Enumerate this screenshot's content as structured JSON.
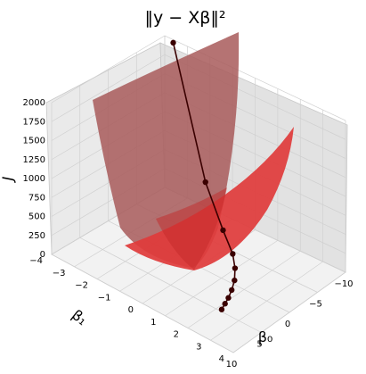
{
  "chart_data": {
    "type": "surface3d",
    "title": "‖y − Xβ‖²",
    "zlabel": "J",
    "xlabel": "β₀",
    "ylabel": "β₁",
    "x_ticks": [
      "−10",
      "−5",
      "0",
      "5",
      "10"
    ],
    "y_ticks": [
      "−4",
      "−3",
      "−2",
      "−1",
      "0",
      "1",
      "2",
      "3",
      "4"
    ],
    "z_ticks": [
      "0",
      "250",
      "500",
      "750",
      "1000",
      "1250",
      "1500",
      "1750",
      "2000"
    ],
    "xlim": [
      -10,
      10
    ],
    "ylim": [
      -4,
      4
    ],
    "zlim": [
      0,
      2000
    ],
    "grid": true,
    "surface_color": "#d62728",
    "path_color": "#3a0000",
    "descent_path": [
      {
        "beta0": -9.5,
        "beta1": -3.5,
        "J": 2000
      },
      {
        "beta0": -6.0,
        "beta1": -1.2,
        "J": 650
      },
      {
        "beta0": -3.5,
        "beta1": 0.2,
        "J": 340
      },
      {
        "beta0": -2.0,
        "beta1": 1.0,
        "J": 220
      },
      {
        "beta0": -0.8,
        "beta1": 1.4,
        "J": 150
      },
      {
        "beta0": 0.5,
        "beta1": 1.7,
        "J": 100
      },
      {
        "beta0": 1.8,
        "beta1": 1.9,
        "J": 70
      },
      {
        "beta0": 3.0,
        "beta1": 2.05,
        "J": 50
      },
      {
        "beta0": 4.0,
        "beta1": 2.15,
        "J": 40
      },
      {
        "beta0": 5.0,
        "beta1": 2.25,
        "J": 30
      }
    ]
  }
}
